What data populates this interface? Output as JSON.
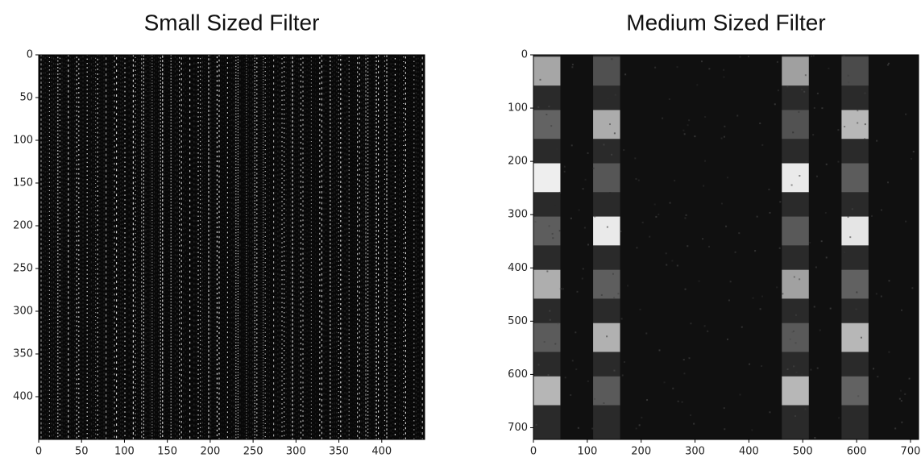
{
  "chart_data": [
    {
      "type": "image",
      "title": "Small Sized Filter",
      "xlim": [
        0,
        450
      ],
      "ylim": [
        450,
        0
      ],
      "xticks": [
        0,
        50,
        100,
        150,
        200,
        250,
        300,
        350,
        400
      ],
      "yticks": [
        0,
        50,
        100,
        150,
        200,
        250,
        300,
        350,
        400
      ]
    },
    {
      "type": "image",
      "title": "Medium Sized Filter",
      "xlim": [
        0,
        715
      ],
      "ylim": [
        722,
        0
      ],
      "xticks": [
        0,
        100,
        200,
        300,
        400,
        500,
        600,
        700
      ],
      "yticks": [
        0,
        100,
        200,
        300,
        400,
        500,
        600,
        700
      ]
    }
  ]
}
